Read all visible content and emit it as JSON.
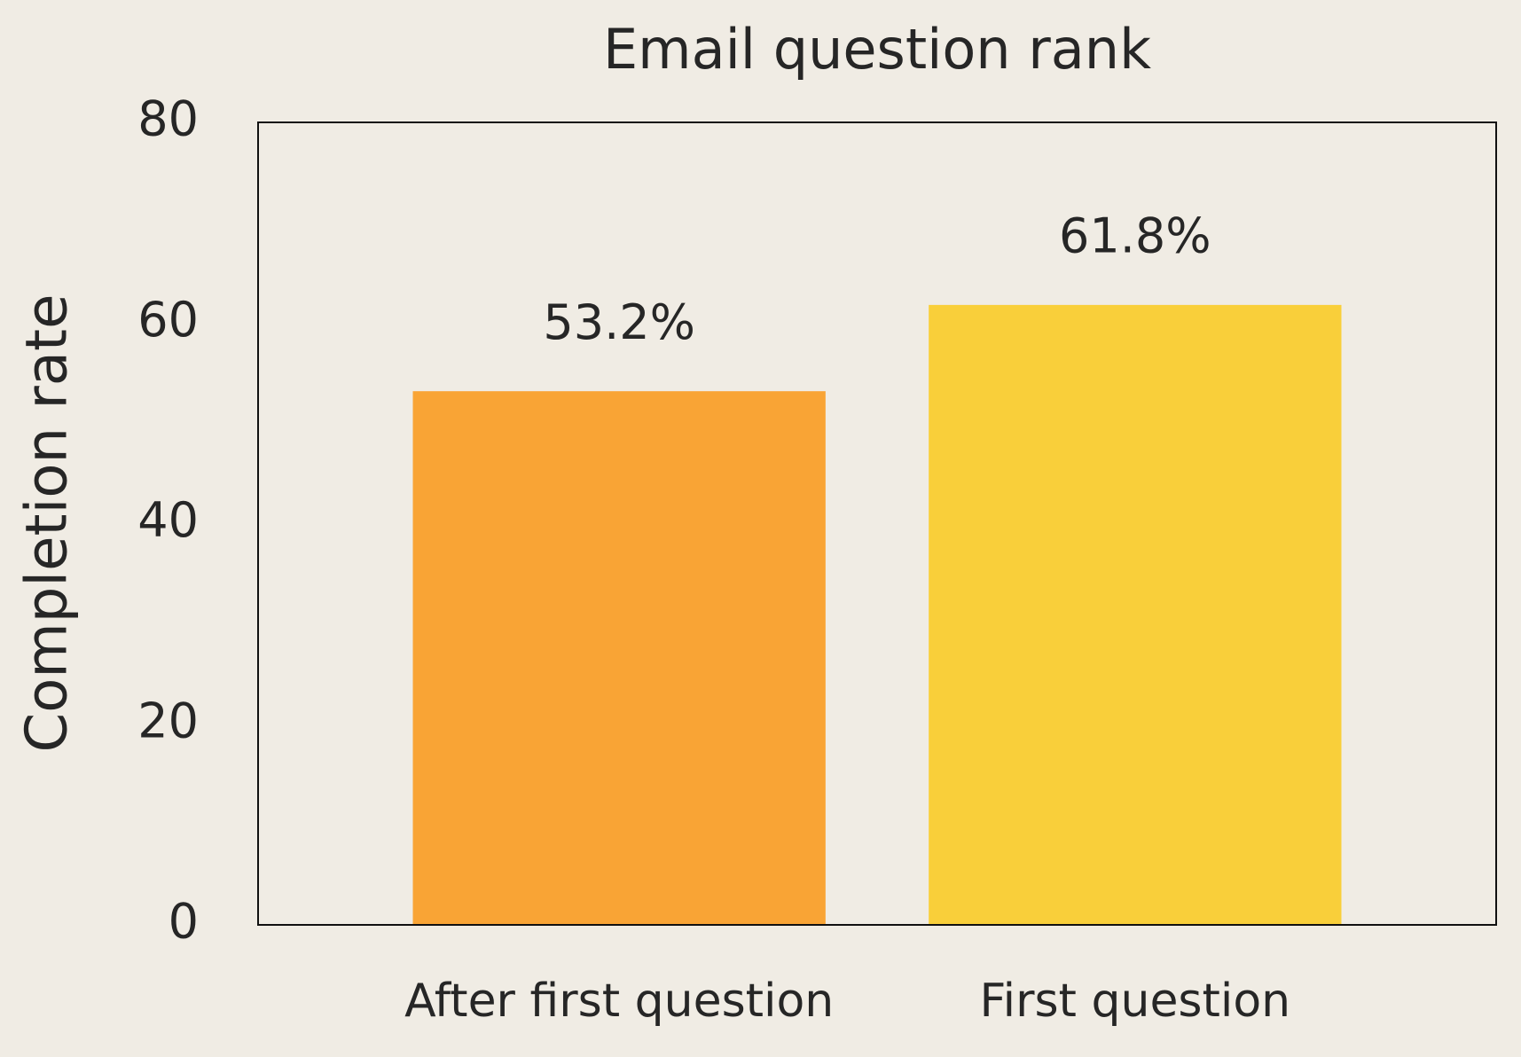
{
  "chart_data": {
    "type": "bar",
    "title": "Email question rank",
    "y_label": "Completion rate",
    "categories": [
      "After first question",
      "First question"
    ],
    "series": [
      {
        "name": null,
        "values": [
          53.2,
          61.8
        ],
        "value_labels": [
          "53.2%",
          "61.8%"
        ],
        "colors": [
          "#f9a435",
          "#f9cf3a"
        ]
      }
    ],
    "ylim": [
      0,
      80
    ],
    "yticks": [
      0,
      20,
      40,
      60,
      80
    ],
    "grid": false
  }
}
